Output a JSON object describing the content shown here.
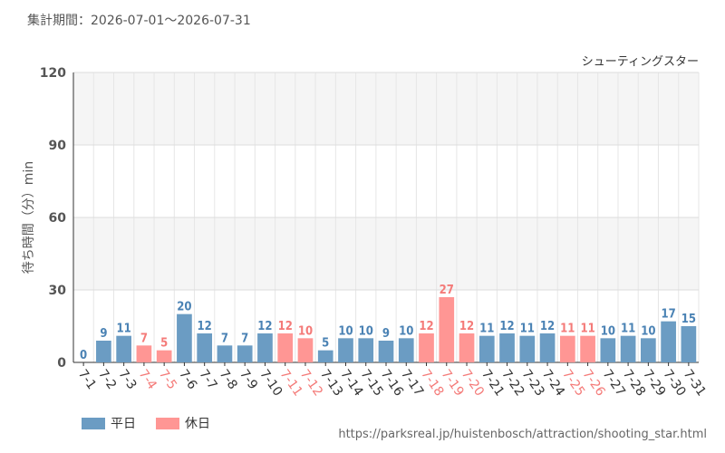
{
  "header": {
    "period": "集計期間：2026-07-01〜2026-07-31"
  },
  "footer": {
    "url": "https://parksreal.jp/huistenbosch/attraction/shooting_star.html"
  },
  "legend": {
    "weekday_label": "平日",
    "holiday_label": "休日"
  },
  "colors": {
    "weekday": "#6b9cc3",
    "holiday": "#ff9694",
    "weekday_text": "#4a82b4",
    "holiday_text": "#f47a78"
  },
  "chart_data": {
    "type": "bar",
    "title": "シューティングスター",
    "ylabel": "待ち時間（分）min",
    "ylim": [
      0,
      120
    ],
    "yticks": [
      0,
      30,
      60,
      90,
      120
    ],
    "categories": [
      "7-1",
      "7-2",
      "7-3",
      "7-4",
      "7-5",
      "7-6",
      "7-7",
      "7-8",
      "7-9",
      "7-10",
      "7-11",
      "7-12",
      "7-13",
      "7-14",
      "7-15",
      "7-16",
      "7-17",
      "7-18",
      "7-19",
      "7-20",
      "7-21",
      "7-22",
      "7-23",
      "7-24",
      "7-25",
      "7-26",
      "7-27",
      "7-28",
      "7-29",
      "7-30",
      "7-31"
    ],
    "values": [
      0,
      9,
      11,
      7,
      5,
      20,
      12,
      7,
      7,
      12,
      12,
      10,
      5,
      10,
      10,
      9,
      10,
      12,
      27,
      12,
      11,
      12,
      11,
      12,
      11,
      11,
      10,
      11,
      10,
      17,
      15
    ],
    "holiday": [
      false,
      false,
      false,
      true,
      true,
      false,
      false,
      false,
      false,
      false,
      true,
      true,
      false,
      false,
      false,
      false,
      false,
      true,
      true,
      true,
      false,
      false,
      false,
      false,
      true,
      true,
      false,
      false,
      false,
      false,
      false
    ],
    "grid": true,
    "legend_position": "bottom-left"
  }
}
